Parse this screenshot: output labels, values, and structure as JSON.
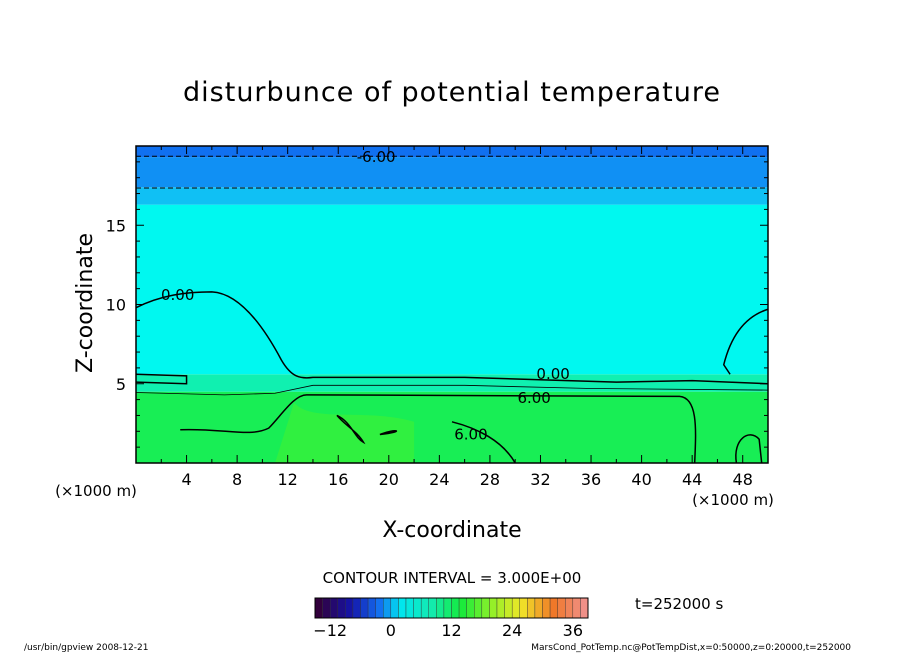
{
  "chart_data": {
    "type": "heatmap",
    "title": "disturbunce of potential temperature",
    "xlabel": "X-coordinate",
    "ylabel": "Z-coordinate",
    "x_unit_label": "(×1000 m)",
    "y_unit_label": "(×1000 m)",
    "xlim": [
      0,
      50
    ],
    "ylim": [
      0,
      20
    ],
    "x_ticks": [
      4,
      8,
      12,
      16,
      20,
      24,
      28,
      32,
      36,
      40,
      44,
      48
    ],
    "y_ticks": [
      5,
      10,
      15
    ],
    "contour_interval_text": "CONTOUR INTERVAL = 3.000E+00",
    "time_label": "t=252000 s",
    "colorbar": {
      "min": -15,
      "max": 39,
      "ticks": [
        -12,
        0,
        12,
        24,
        36
      ]
    },
    "contour_labels": [
      {
        "text": "-6.00",
        "x": 19,
        "z": 19.3
      },
      {
        "text": "0.00",
        "x": 3.3,
        "z": 10.6
      },
      {
        "text": "0.00",
        "x": 33,
        "z": 5.6
      },
      {
        "text": "6.00",
        "x": 31.5,
        "z": 4.1
      },
      {
        "text": "6.00",
        "x": 26.5,
        "z": 1.8
      }
    ],
    "bands": [
      {
        "z0": 0,
        "z1": 4.5,
        "level": 4.5,
        "color": "#18ee55"
      },
      {
        "z0": 4.5,
        "z1": 5.6,
        "level": 1.5,
        "color": "#10f0b0"
      },
      {
        "z0": 5.6,
        "z1": 16.3,
        "level": -1.5,
        "color": "#00f8f0"
      },
      {
        "z0": 16.3,
        "z1": 17.4,
        "level": -4.5,
        "color": "#10c0f4"
      },
      {
        "z0": 17.4,
        "z1": 19.3,
        "level": -6.0,
        "color": "#1090f4"
      },
      {
        "z0": 19.3,
        "z1": 20,
        "level": -7.5,
        "color": "#1070f0"
      }
    ]
  },
  "footer": {
    "left": "/usr/bin/gpview   2008-12-21",
    "right": "MarsCond_PotTemp.nc@PotTempDist,x=0:50000,z=0:20000,t=252000"
  }
}
